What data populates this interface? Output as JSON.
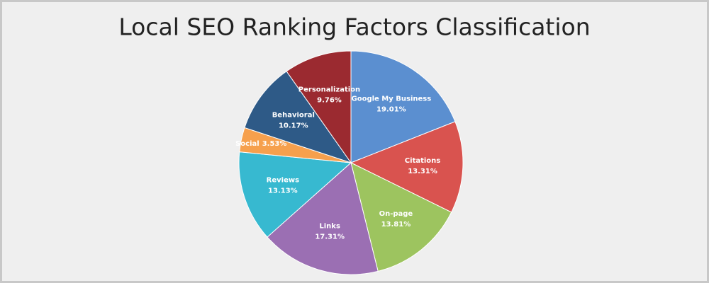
{
  "chart_data": {
    "type": "pie",
    "title": "Local SEO Ranking Factors Classification",
    "categories": [
      "Google My Business",
      "Citations",
      "On-page",
      "Links",
      "Reviews",
      "Social",
      "Behavioral",
      "Personalization"
    ],
    "values": [
      19.01,
      13.31,
      13.81,
      17.31,
      13.13,
      3.53,
      10.17,
      9.76
    ],
    "value_labels": [
      "19.01%",
      "13.31%",
      "13.81%",
      "17.31%",
      "13.13%",
      "3.53%",
      "10.17%",
      "9.76%"
    ],
    "colors": [
      "#5b8fd0",
      "#d9534f",
      "#9dc45f",
      "#9b6fb3",
      "#37b9d0",
      "#f6a04d",
      "#2e5a87",
      "#9b2a30"
    ]
  }
}
